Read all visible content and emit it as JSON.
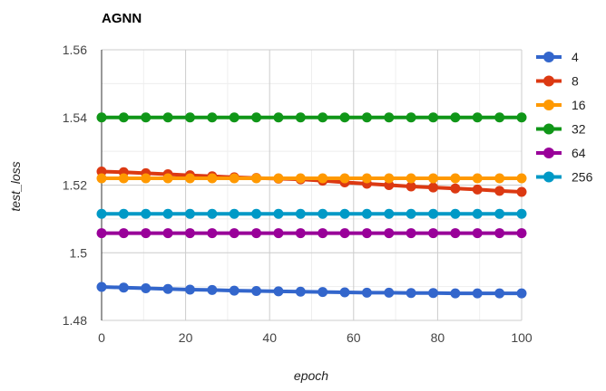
{
  "chart_data": {
    "type": "line",
    "title": "AGNN",
    "xlabel": "epoch",
    "ylabel": "test_loss",
    "xlim": [
      0,
      100
    ],
    "ylim": [
      1.48,
      1.56
    ],
    "x_ticks": [
      0,
      20,
      40,
      60,
      80,
      100
    ],
    "x_tick_labels": [
      "0",
      "20",
      "40",
      "60",
      "80",
      "100"
    ],
    "y_ticks": [
      1.48,
      1.5,
      1.52,
      1.54,
      1.56
    ],
    "y_tick_labels": [
      "1.48",
      "1.5",
      "1.52",
      "1.54",
      "1.56"
    ],
    "grid": true,
    "legend_position": "right",
    "x": [
      0,
      5.26,
      10.53,
      15.79,
      21.05,
      26.32,
      31.58,
      36.84,
      42.11,
      47.37,
      52.63,
      57.89,
      63.16,
      68.42,
      73.68,
      78.95,
      84.21,
      89.47,
      94.74,
      100
    ],
    "series": [
      {
        "name": "4",
        "color": "#3366cc",
        "values": [
          1.4899,
          1.4897,
          1.4895,
          1.4893,
          1.4891,
          1.489,
          1.4888,
          1.4887,
          1.4886,
          1.4885,
          1.4884,
          1.4883,
          1.4882,
          1.4882,
          1.4881,
          1.4881,
          1.488,
          1.488,
          1.488,
          1.488
        ]
      },
      {
        "name": "8",
        "color": "#dc3912",
        "values": [
          1.524,
          1.5238,
          1.5235,
          1.5232,
          1.5229,
          1.5226,
          1.5223,
          1.5221,
          1.5219,
          1.5217,
          1.5213,
          1.5208,
          1.5204,
          1.52,
          1.5196,
          1.5193,
          1.519,
          1.5187,
          1.5183,
          1.518
        ]
      },
      {
        "name": "16",
        "color": "#ff9900",
        "values": [
          1.522,
          1.522,
          1.522,
          1.522,
          1.522,
          1.522,
          1.522,
          1.522,
          1.522,
          1.522,
          1.522,
          1.522,
          1.522,
          1.522,
          1.522,
          1.522,
          1.522,
          1.522,
          1.522,
          1.522
        ]
      },
      {
        "name": "32",
        "color": "#109618",
        "values": [
          1.54,
          1.54,
          1.54,
          1.54,
          1.54,
          1.54,
          1.54,
          1.54,
          1.54,
          1.54,
          1.54,
          1.54,
          1.54,
          1.54,
          1.54,
          1.54,
          1.54,
          1.54,
          1.54,
          1.54
        ]
      },
      {
        "name": "64",
        "color": "#990099",
        "values": [
          1.5058,
          1.5058,
          1.5058,
          1.5058,
          1.5058,
          1.5058,
          1.5058,
          1.5058,
          1.5058,
          1.5058,
          1.5058,
          1.5058,
          1.5058,
          1.5058,
          1.5058,
          1.5058,
          1.5058,
          1.5058,
          1.5058,
          1.5058
        ]
      },
      {
        "name": "256",
        "color": "#0099c6",
        "values": [
          1.5115,
          1.5115,
          1.5115,
          1.5115,
          1.5115,
          1.5115,
          1.5115,
          1.5115,
          1.5115,
          1.5115,
          1.5115,
          1.5115,
          1.5115,
          1.5115,
          1.5115,
          1.5115,
          1.5115,
          1.5115,
          1.5115,
          1.5115
        ]
      }
    ]
  }
}
